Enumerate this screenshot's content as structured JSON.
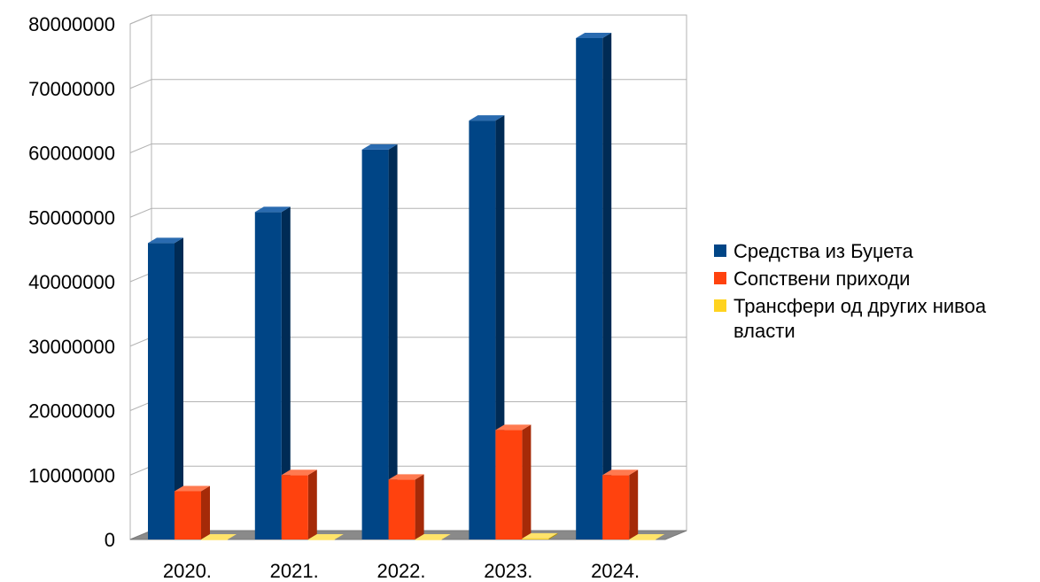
{
  "chart_data": {
    "type": "bar",
    "title": "",
    "xlabel": "",
    "ylabel": "",
    "categories": [
      "2020.",
      "2021.",
      "2022.",
      "2023.",
      "2024."
    ],
    "ylim": [
      0,
      80000000
    ],
    "yticks": [
      "0",
      "10000000",
      "20000000",
      "30000000",
      "40000000",
      "50000000",
      "60000000",
      "70000000",
      "80000000"
    ],
    "grid": true,
    "legend_position": "right",
    "series": [
      {
        "name": "Средства из Буџета",
        "color": "#004586",
        "values": [
          46000000,
          50800000,
          60500000,
          65000000,
          77800000
        ]
      },
      {
        "name": "Сопствени приходи",
        "color": "#ff420e",
        "values": [
          7500000,
          10000000,
          9300000,
          17000000,
          10000000
        ]
      },
      {
        "name": "Трансфери од других нивоа власти",
        "color": "#ffd320",
        "values": [
          0,
          0,
          0,
          150000,
          0
        ]
      }
    ]
  }
}
